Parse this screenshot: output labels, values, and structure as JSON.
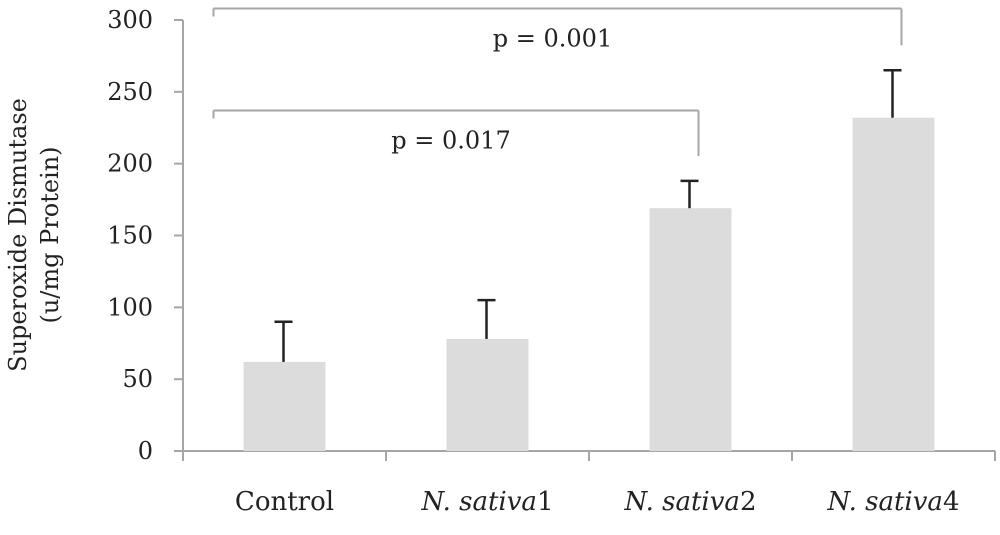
{
  "chart_data": {
    "type": "bar",
    "ylabel_line1": "Superoxide Dismutase",
    "ylabel_line2": "(u/mg Protein)",
    "ylim": [
      0,
      300
    ],
    "yticks": [
      "0",
      "50",
      "100",
      "150",
      "200",
      "250",
      "300"
    ],
    "categories": [
      {
        "name": "Control",
        "suffix": ""
      },
      {
        "name": "N. sativa",
        "suffix": "1"
      },
      {
        "name": "N. sativa",
        "suffix": "2"
      },
      {
        "name": "N. sativa",
        "suffix": "4"
      }
    ],
    "values": [
      62,
      78,
      169,
      232
    ],
    "errors": [
      28,
      27,
      19,
      33
    ],
    "significance": [
      {
        "label": "p = 0.017",
        "from_index": 0,
        "to_index": 2,
        "level": 237
      },
      {
        "label": "p = 0.001",
        "from_index": 0,
        "to_index": 3,
        "level": 308
      }
    ],
    "bar_color": "#dcdcdc",
    "axis_color": "#a6a6a6",
    "error_bar_color": "#222222",
    "bracket_color": "#a6a6a6",
    "grid": false,
    "legend": false
  }
}
